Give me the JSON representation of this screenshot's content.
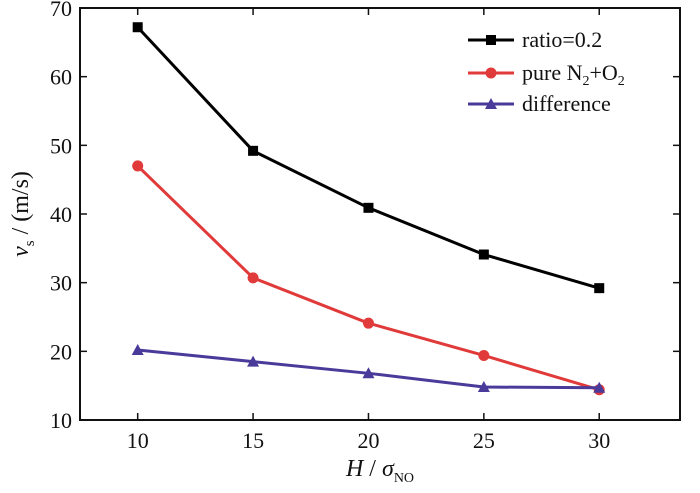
{
  "chart_data": {
    "type": "line",
    "x": [
      10,
      15,
      20,
      25,
      30
    ],
    "xlim": [
      7.5,
      33.5
    ],
    "ylim": [
      10,
      70
    ],
    "xticks": [
      10,
      15,
      20,
      25,
      30
    ],
    "yticks": [
      10,
      20,
      30,
      40,
      50,
      60,
      70
    ],
    "xlabel": {
      "main": "H",
      "sep": " / ",
      "sym": "σ",
      "sub": "NO"
    },
    "ylabel": {
      "main": "v",
      "sub": "s",
      "rest": " / (m/s)"
    },
    "grid": false,
    "legend_position": "top-right",
    "series": [
      {
        "name": "ratio=0.2",
        "legend": {
          "t1": "ratio=0.2"
        },
        "color": "#000000",
        "marker": "square",
        "values": [
          67.2,
          49.2,
          40.9,
          34.1,
          29.2
        ]
      },
      {
        "name": "pure N2+O2",
        "legend": {
          "t1": "pure N",
          "s1": "2",
          "t2": "+O",
          "s2": "2"
        },
        "color": "#e03a3a",
        "marker": "circle",
        "values": [
          47.0,
          30.7,
          24.1,
          19.4,
          14.4
        ]
      },
      {
        "name": "difference",
        "legend": {
          "t1": "difference"
        },
        "color": "#4a3a9a",
        "marker": "triangle",
        "values": [
          20.2,
          18.5,
          16.8,
          14.8,
          14.7
        ]
      }
    ]
  }
}
